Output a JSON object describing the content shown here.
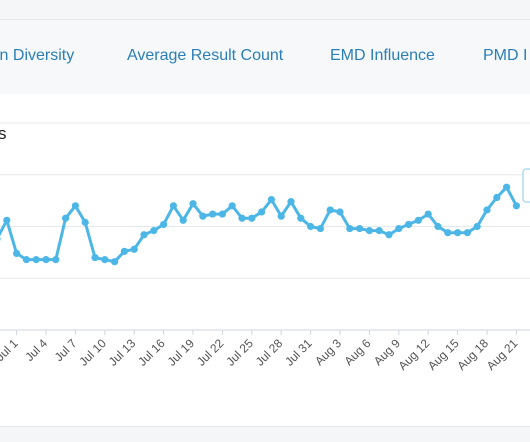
{
  "tabs": [
    "in Diversity",
    "Average Result Count",
    "EMD Influence",
    "PMD I"
  ],
  "panel": {
    "title": "s"
  },
  "chart_data": {
    "type": "line",
    "x_tick_labels": [
      "Jul 1",
      "Jul 4",
      "Jul 7",
      "Jul 10",
      "Jul 13",
      "Jul 16",
      "Jul 19",
      "Jul 22",
      "Jul 25",
      "Jul 28",
      "Jul 31",
      "Aug 3",
      "Aug 6",
      "Aug 9",
      "Aug 12",
      "Aug 15",
      "Aug 18",
      "Aug 21"
    ],
    "series": [
      {
        "color": "#4cb7e6",
        "values": [
          44,
          53,
          37,
          34,
          34,
          34,
          34,
          54,
          60,
          52,
          35,
          34,
          33,
          38,
          39,
          46,
          48,
          51,
          60,
          53,
          61,
          55,
          56,
          56,
          60,
          54,
          54,
          57,
          63,
          55,
          62,
          54,
          50,
          49,
          58,
          57,
          49,
          49,
          48,
          48,
          46,
          49,
          51,
          53,
          56,
          50,
          47,
          47,
          47,
          50,
          58,
          64,
          69,
          60
        ]
      }
    ],
    "ylim": [
      0,
      100
    ],
    "grid": true,
    "tooltip_visible": true
  }
}
